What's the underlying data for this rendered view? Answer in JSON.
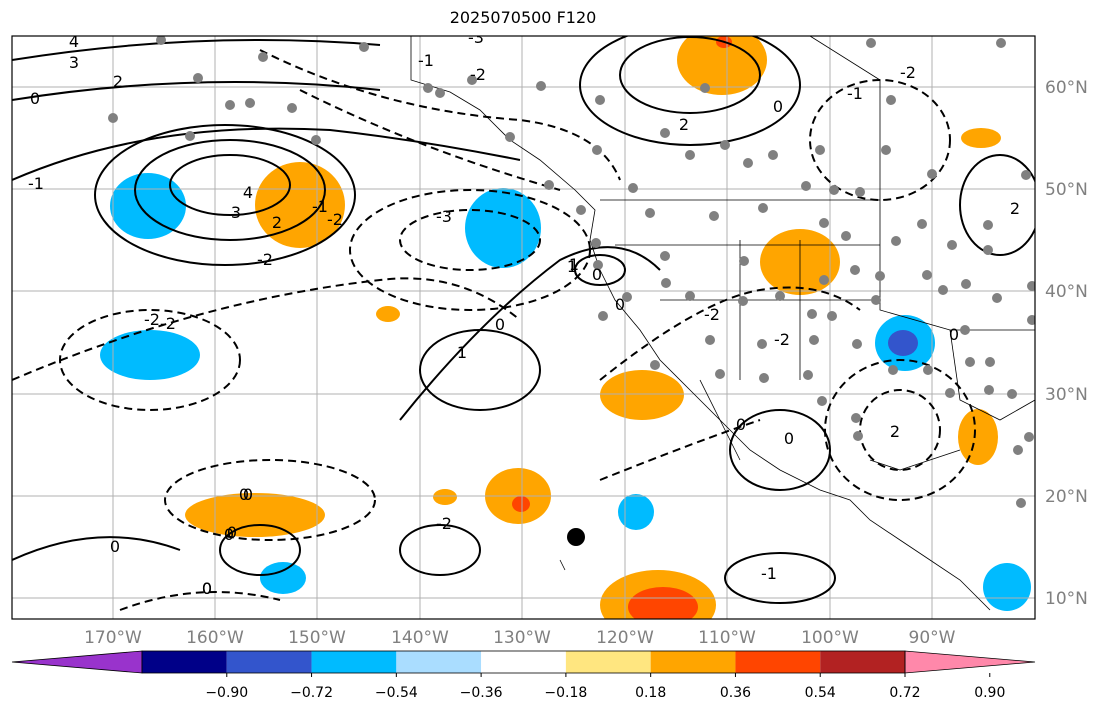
{
  "title": "2025070500 F120",
  "map": {
    "lon_ticks": [
      "170°W",
      "160°W",
      "150°W",
      "140°W",
      "130°W",
      "120°W",
      "110°W",
      "100°W",
      "90°W"
    ],
    "lat_ticks": [
      "60°N",
      "50°N",
      "40°N",
      "30°N",
      "20°N",
      "10°N"
    ],
    "contour_labels": [
      "4",
      "3",
      "2",
      "0",
      "-1",
      "-2",
      "-3",
      "-1",
      "-2",
      "2",
      "0",
      "-3",
      "1",
      "0",
      "1",
      "0",
      "-2",
      "-2",
      "0",
      "0",
      "0",
      "0",
      "0",
      "0",
      "-2",
      "-1",
      "2",
      "-2",
      "-1",
      "2",
      "1",
      "0",
      "-2",
      "2",
      "3",
      "4",
      "-1",
      "-2",
      "-2",
      "0",
      "0",
      "0",
      "0"
    ]
  },
  "colorbar": {
    "ticks": [
      "−0.90",
      "−0.72",
      "−0.54",
      "−0.36",
      "−0.18",
      "0.18",
      "0.36",
      "0.54",
      "0.72",
      "0.90"
    ],
    "colors": [
      "#9933cc",
      "#000088",
      "#3355cc",
      "#00bbff",
      "#aaddff",
      "#ffffff",
      "#ffe680",
      "#ffa500",
      "#ff4500",
      "#b22222",
      "#ff88aa"
    ]
  }
}
